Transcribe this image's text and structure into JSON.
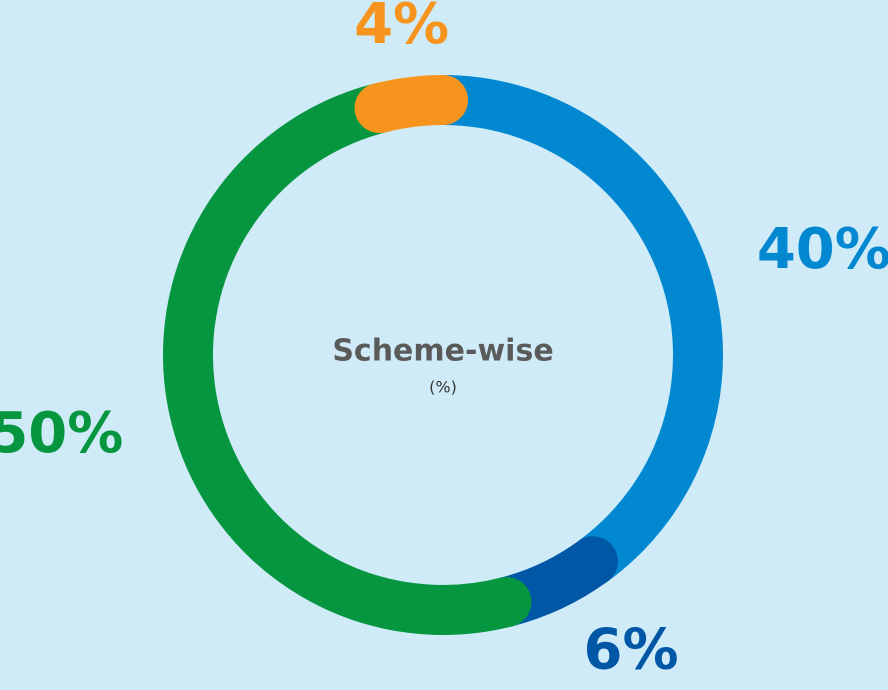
{
  "chart_data": {
    "type": "donut",
    "center_title": "Scheme-wise",
    "center_subtitle": "(%)",
    "values": [
      40,
      6,
      50,
      4
    ],
    "value_labels": [
      "40%",
      "6%",
      "50%",
      "4%"
    ],
    "colors": [
      "#0288d1",
      "#0057a6",
      "#05963f",
      "#f7941d"
    ]
  }
}
